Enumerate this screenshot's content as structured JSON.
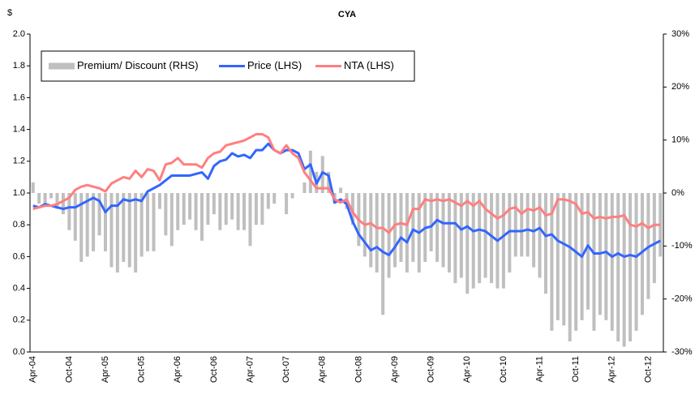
{
  "chart_data": {
    "type": "combo",
    "title": "CYA",
    "y_label": "$",
    "legend": "top-left",
    "categories": [
      "Apr-04",
      null,
      null,
      null,
      null,
      null,
      "Oct-04",
      null,
      null,
      null,
      null,
      null,
      "Apr-05",
      null,
      null,
      null,
      null,
      null,
      "Oct-05",
      null,
      null,
      null,
      null,
      null,
      "Apr-06",
      null,
      null,
      null,
      null,
      null,
      "Oct-06",
      null,
      null,
      null,
      null,
      null,
      "Apr-07",
      null,
      null,
      null,
      null,
      null,
      "Oct-07",
      null,
      null,
      null,
      null,
      null,
      "Apr-08",
      null,
      null,
      null,
      null,
      null,
      "Oct-08",
      null,
      null,
      null,
      null,
      null,
      "Apr-09",
      null,
      null,
      null,
      null,
      null,
      "Oct-09",
      null,
      null,
      null,
      null,
      null,
      "Apr-10",
      null,
      null,
      null,
      null,
      null,
      "Oct-10",
      null,
      null,
      null,
      null,
      null,
      "Apr-11",
      null,
      null,
      null,
      null,
      null,
      "Oct-11",
      null,
      null,
      null,
      null,
      null,
      "Apr-12",
      null,
      null,
      null,
      null,
      null,
      "Oct-12",
      null,
      null
    ],
    "ylim": [
      0,
      2
    ],
    "yticks": [
      {
        "value": 0,
        "label": "0.0"
      },
      0.2,
      0.4,
      0.6,
      0.8,
      {
        "value": 1,
        "label": "1.0"
      },
      1.2,
      1.4,
      1.6,
      1.8,
      {
        "value": 2,
        "label": "2.0"
      }
    ],
    "y2lim": [
      -30,
      30
    ],
    "y2ticks": [
      {
        "value": -30,
        "label": "-30%"
      },
      {
        "value": -20,
        "label": "-20%"
      },
      {
        "value": -10,
        "label": "-10%"
      },
      {
        "value": 0,
        "label": "0%"
      },
      {
        "value": 10,
        "label": "10%"
      },
      {
        "value": 20,
        "label": "20%"
      },
      {
        "value": 30,
        "label": "30%"
      }
    ],
    "series": [
      {
        "name": "Premium/ Discount (RHS)",
        "type": "bar",
        "axis": "y2",
        "color": "#bfbfbf",
        "values": [
          2,
          -2,
          -2,
          -1,
          -3,
          -4,
          -7,
          -9,
          -13,
          -12,
          -11,
          -8,
          -11,
          -14,
          -15,
          -13,
          -14,
          -15,
          -12,
          -11,
          -11,
          -3,
          -8,
          -10,
          -7,
          -6,
          -5,
          -7,
          -9,
          -6,
          -4,
          -7,
          -6,
          -5,
          -7,
          -7,
          -10,
          -6,
          -6,
          -3,
          -2,
          0,
          -4,
          -1,
          0,
          2,
          8,
          4,
          7,
          4,
          -2,
          1,
          -3,
          -6,
          -10,
          -12,
          -14,
          -15,
          -23,
          -16,
          -14,
          -13,
          -15,
          -13,
          -15,
          -13,
          -11,
          -13,
          -14,
          -15,
          -17,
          -16,
          -19,
          -18,
          -17,
          -16,
          -17,
          -18,
          -18,
          -15,
          -12,
          -12,
          -12,
          -14,
          -16,
          -19,
          -26,
          -24,
          -25,
          -28,
          -26,
          -24,
          -22,
          -26,
          -23,
          -24,
          -26,
          -28,
          -29,
          -28,
          -26,
          -23,
          -20,
          -17,
          -12
        ]
      },
      {
        "name": "Price (LHS)",
        "type": "line",
        "color": "#3366ff",
        "values": [
          0.92,
          0.91,
          0.93,
          0.92,
          0.91,
          0.9,
          0.91,
          0.91,
          0.93,
          0.95,
          0.97,
          0.95,
          0.88,
          0.92,
          0.92,
          0.96,
          0.95,
          0.96,
          0.95,
          1.01,
          1.03,
          1.05,
          1.08,
          1.11,
          1.11,
          1.11,
          1.11,
          1.12,
          1.13,
          1.09,
          1.17,
          1.2,
          1.21,
          1.25,
          1.23,
          1.24,
          1.22,
          1.27,
          1.27,
          1.31,
          1.27,
          1.25,
          1.27,
          1.27,
          1.25,
          1.15,
          1.18,
          1.06,
          1.13,
          1.11,
          0.94,
          0.96,
          0.93,
          0.82,
          0.74,
          0.69,
          0.64,
          0.66,
          0.63,
          0.61,
          0.66,
          0.72,
          0.69,
          0.77,
          0.75,
          0.78,
          0.79,
          0.83,
          0.81,
          0.81,
          0.81,
          0.77,
          0.79,
          0.76,
          0.77,
          0.76,
          0.73,
          0.7,
          0.73,
          0.76,
          0.76,
          0.76,
          0.77,
          0.76,
          0.78,
          0.73,
          0.74,
          0.7,
          0.68,
          0.66,
          0.63,
          0.6,
          0.67,
          0.62,
          0.62,
          0.63,
          0.6,
          0.62,
          0.6,
          0.61,
          0.6,
          0.63,
          0.66,
          0.68,
          0.7
        ]
      },
      {
        "name": "NTA (LHS)",
        "type": "line",
        "color": "#ff7f7f",
        "values": [
          0.9,
          0.91,
          0.92,
          0.92,
          0.93,
          0.95,
          0.97,
          1.02,
          1.04,
          1.05,
          1.04,
          1.03,
          1.01,
          1.06,
          1.08,
          1.1,
          1.09,
          1.14,
          1.1,
          1.15,
          1.14,
          1.08,
          1.18,
          1.19,
          1.22,
          1.18,
          1.18,
          1.18,
          1.16,
          1.22,
          1.25,
          1.26,
          1.3,
          1.31,
          1.32,
          1.33,
          1.35,
          1.37,
          1.37,
          1.35,
          1.27,
          1.25,
          1.3,
          1.25,
          1.22,
          1.13,
          1.08,
          1.03,
          1.03,
          1.03,
          0.96,
          0.94,
          0.96,
          0.88,
          0.83,
          0.8,
          0.81,
          0.78,
          0.78,
          0.75,
          0.8,
          0.81,
          0.8,
          0.9,
          0.9,
          0.96,
          0.95,
          0.96,
          0.95,
          0.96,
          0.94,
          0.92,
          0.95,
          0.92,
          0.95,
          0.9,
          0.87,
          0.84,
          0.86,
          0.9,
          0.91,
          0.87,
          0.9,
          0.89,
          0.91,
          0.86,
          0.87,
          0.96,
          0.96,
          0.95,
          0.93,
          0.87,
          0.88,
          0.84,
          0.85,
          0.84,
          0.85,
          0.85,
          0.86,
          0.8,
          0.79,
          0.81,
          0.78,
          0.8,
          0.8
        ]
      }
    ]
  }
}
